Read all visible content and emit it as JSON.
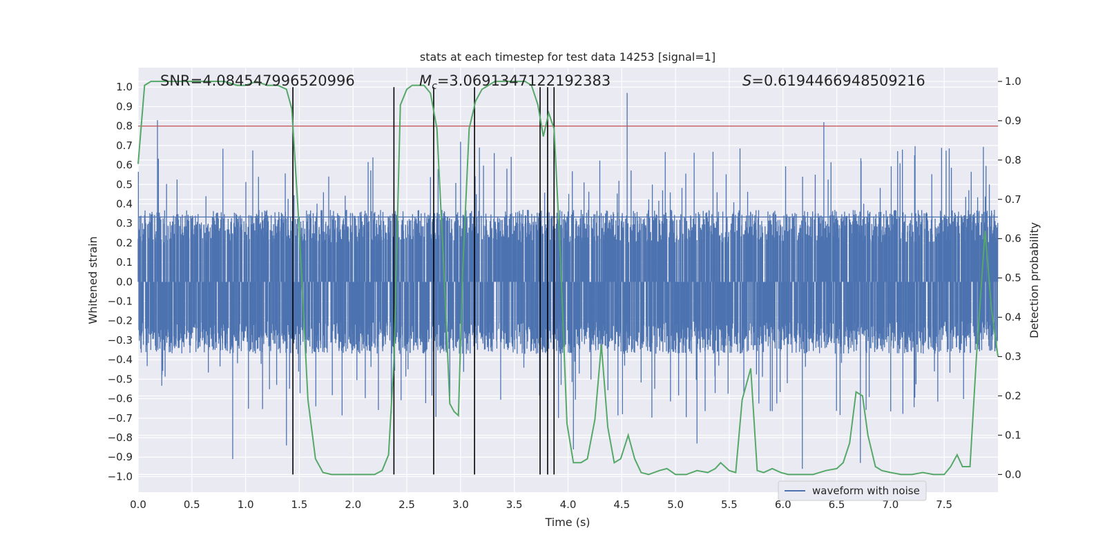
{
  "chart_data": {
    "type": "line",
    "title": "stats at each timestep for test data 14253 [signal=1]",
    "xlabel": "Time (s)",
    "ylabel_left": "Whitened strain",
    "ylabel_right": "Detection probability",
    "xlim": [
      0.0,
      8.0
    ],
    "ylim_left": [
      -1.08,
      1.1
    ],
    "ylim_right": [
      -0.045,
      1.035
    ],
    "x_ticks": [
      "0.0",
      "0.5",
      "1.0",
      "1.5",
      "2.0",
      "2.5",
      "3.0",
      "3.5",
      "4.0",
      "4.5",
      "5.0",
      "5.5",
      "6.0",
      "6.5",
      "7.0",
      "7.5"
    ],
    "x_tick_values": [
      0.0,
      0.5,
      1.0,
      1.5,
      2.0,
      2.5,
      3.0,
      3.5,
      4.0,
      4.5,
      5.0,
      5.5,
      6.0,
      6.5,
      7.0,
      7.5
    ],
    "y_left_ticks": [
      "1.0",
      "0.9",
      "0.8",
      "0.7",
      "0.6",
      "0.5",
      "0.4",
      "0.3",
      "0.2",
      "0.1",
      "0.0",
      "−0.1",
      "−0.2",
      "−0.3",
      "−0.4",
      "−0.5",
      "−0.6",
      "−0.7",
      "−0.8",
      "−0.9",
      "−1.0"
    ],
    "y_left_tick_values": [
      1.0,
      0.9,
      0.8,
      0.7,
      0.6,
      0.5,
      0.4,
      0.3,
      0.2,
      0.1,
      0.0,
      -0.1,
      -0.2,
      -0.3,
      -0.4,
      -0.5,
      -0.6,
      -0.7,
      -0.8,
      -0.9,
      -1.0
    ],
    "y_right_ticks": [
      "1.0",
      "0.9",
      "0.8",
      "0.7",
      "0.6",
      "0.5",
      "0.4",
      "0.3",
      "0.2",
      "0.1",
      "0.0"
    ],
    "y_right_tick_values": [
      1.0,
      0.9,
      0.8,
      0.7,
      0.6,
      0.5,
      0.4,
      0.3,
      0.2,
      0.1,
      0.0
    ],
    "annotations": {
      "snr": "SNR=4.084547996520996",
      "mc_symbol": "M",
      "mc_sub": "c",
      "mc_value": "=3.0691347122192383",
      "s_symbol": "S",
      "s_value": "=0.6194466948509216"
    },
    "threshold": {
      "value": 0.8,
      "axis": "left",
      "color": "#c44e52"
    },
    "detection_markers_x": [
      1.44,
      2.38,
      2.75,
      3.13,
      3.74,
      3.81,
      3.87
    ],
    "legend": {
      "entries": [
        "waveform with noise"
      ],
      "placement": "lower-right"
    },
    "series": [
      {
        "name": "waveform with noise",
        "axis": "left",
        "color": "#4c72b0",
        "kind": "noise",
        "core_amplitude": 0.37,
        "spike_peaks": [
          {
            "x": 0.18,
            "y": 0.83
          },
          {
            "x": 0.88,
            "y": -0.91
          },
          {
            "x": 1.38,
            "y": -0.84
          },
          {
            "x": 1.44,
            "y": 0.79
          },
          {
            "x": 3.0,
            "y": 0.72
          },
          {
            "x": 4.05,
            "y": -0.86
          },
          {
            "x": 4.55,
            "y": 0.97
          },
          {
            "x": 5.2,
            "y": -0.83
          },
          {
            "x": 6.18,
            "y": -0.96
          },
          {
            "x": 6.38,
            "y": 0.82
          },
          {
            "x": 6.72,
            "y": -0.93
          },
          {
            "x": 7.92,
            "y": 0.5
          }
        ]
      },
      {
        "name": "detection probability",
        "axis": "right",
        "color": "#55a868",
        "x": [
          0.0,
          0.06,
          0.12,
          0.25,
          0.5,
          0.8,
          0.92,
          1.0,
          1.1,
          1.2,
          1.3,
          1.38,
          1.43,
          1.5,
          1.58,
          1.65,
          1.72,
          1.8,
          1.9,
          2.0,
          2.1,
          2.15,
          2.2,
          2.27,
          2.33,
          2.38,
          2.44,
          2.5,
          2.55,
          2.6,
          2.66,
          2.72,
          2.78,
          2.84,
          2.9,
          2.94,
          2.98,
          3.02,
          3.08,
          3.14,
          3.2,
          3.26,
          3.32,
          3.45,
          3.6,
          3.66,
          3.72,
          3.77,
          3.82,
          3.87,
          3.93,
          3.99,
          4.05,
          4.12,
          4.18,
          4.25,
          4.31,
          4.37,
          4.43,
          4.49,
          4.56,
          4.62,
          4.68,
          4.75,
          4.85,
          4.92,
          5.0,
          5.1,
          5.2,
          5.3,
          5.37,
          5.42,
          5.5,
          5.56,
          5.62,
          5.7,
          5.76,
          5.82,
          5.9,
          5.98,
          6.05,
          6.15,
          6.28,
          6.4,
          6.5,
          6.56,
          6.62,
          6.68,
          6.74,
          6.79,
          6.86,
          6.92,
          7.0,
          7.1,
          7.2,
          7.3,
          7.4,
          7.5,
          7.56,
          7.62,
          7.67,
          7.74,
          7.8,
          7.88,
          7.94,
          8.0
        ],
        "y": [
          0.79,
          0.99,
          1.0,
          1.0,
          1.0,
          1.0,
          0.99,
          0.99,
          1.0,
          0.99,
          0.99,
          0.98,
          0.93,
          0.62,
          0.19,
          0.04,
          0.005,
          0.0,
          0.0,
          0.0,
          0.0,
          0.0,
          0.0,
          0.01,
          0.05,
          0.29,
          0.94,
          0.98,
          0.99,
          0.99,
          0.99,
          0.97,
          0.88,
          0.55,
          0.18,
          0.16,
          0.15,
          0.52,
          0.88,
          0.95,
          0.98,
          0.99,
          1.0,
          1.0,
          1.0,
          0.99,
          0.94,
          0.86,
          0.92,
          0.88,
          0.55,
          0.13,
          0.03,
          0.03,
          0.04,
          0.14,
          0.33,
          0.12,
          0.03,
          0.04,
          0.1,
          0.04,
          0.005,
          0.0,
          0.01,
          0.015,
          0.0,
          0.0,
          0.01,
          0.005,
          0.015,
          0.03,
          0.01,
          0.005,
          0.19,
          0.27,
          0.01,
          0.005,
          0.015,
          0.005,
          0.0,
          0.0,
          0.0,
          0.01,
          0.015,
          0.03,
          0.08,
          0.21,
          0.2,
          0.1,
          0.02,
          0.01,
          0.005,
          0.0,
          0.0,
          0.005,
          0.0,
          0.0,
          0.02,
          0.05,
          0.02,
          0.02,
          0.3,
          0.62,
          0.42,
          0.3
        ]
      }
    ]
  }
}
